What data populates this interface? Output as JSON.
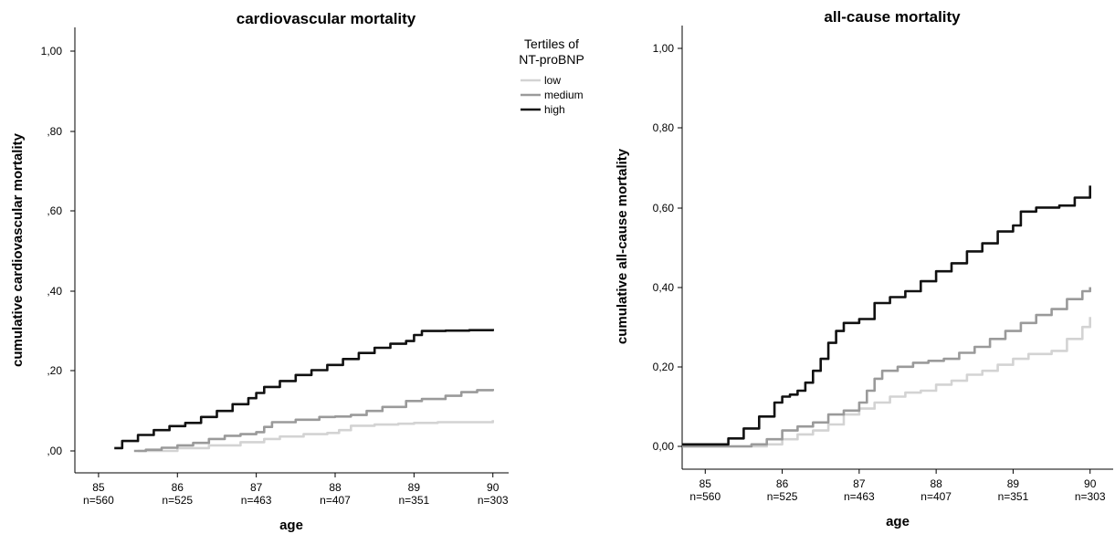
{
  "chart_data": [
    {
      "type": "line",
      "title": "cardiovascular mortality",
      "xlabel": "age",
      "ylabel": "cumulative cardiovascular mortality",
      "xlim": [
        84.7,
        90.2
      ],
      "ylim": [
        -0.06,
        1.05
      ],
      "x_ticks": [
        85,
        86,
        87,
        88,
        89,
        90
      ],
      "x_tick_sublabels": [
        "n=560",
        "n=525",
        "n=463",
        "n=407",
        "n=351",
        "n=303"
      ],
      "y_ticks": [
        "0",
        "0.2",
        "0.4",
        "0.6",
        "0.8",
        "1"
      ],
      "y_tick_labels": [
        ",00",
        ",20",
        ",40",
        ",60",
        ",80",
        "1,00"
      ],
      "grid": false,
      "legend": {
        "title_lines": [
          "Tertiles of",
          "NT-proBNP"
        ],
        "placement": "top-right"
      },
      "series": [
        {
          "name": "low",
          "color": "#d3d3d3",
          "x": [
            85.5,
            86.0,
            86.4,
            86.8,
            87.1,
            87.3,
            87.6,
            87.9,
            88.05,
            88.2,
            88.5,
            88.8,
            89.0,
            89.3,
            89.7,
            90.0
          ],
          "y": [
            0.0,
            0.007,
            0.014,
            0.022,
            0.03,
            0.036,
            0.042,
            0.045,
            0.052,
            0.063,
            0.066,
            0.068,
            0.07,
            0.072,
            0.072,
            0.077
          ]
        },
        {
          "name": "medium",
          "color": "#9a9a9a",
          "x": [
            85.45,
            85.6,
            85.8,
            86.0,
            86.2,
            86.4,
            86.6,
            86.8,
            87.0,
            87.1,
            87.2,
            87.5,
            87.8,
            88.0,
            88.2,
            88.4,
            88.6,
            88.9,
            89.1,
            89.4,
            89.6,
            89.8,
            90.0
          ],
          "y": [
            0.0,
            0.003,
            0.008,
            0.014,
            0.02,
            0.03,
            0.038,
            0.042,
            0.047,
            0.06,
            0.072,
            0.078,
            0.085,
            0.086,
            0.09,
            0.1,
            0.11,
            0.125,
            0.13,
            0.138,
            0.147,
            0.152,
            0.155
          ]
        },
        {
          "name": "high",
          "color": "#111111",
          "x": [
            85.2,
            85.3,
            85.5,
            85.7,
            85.9,
            86.1,
            86.3,
            86.5,
            86.7,
            86.9,
            87.0,
            87.1,
            87.3,
            87.5,
            87.7,
            87.9,
            88.1,
            88.3,
            88.5,
            88.7,
            88.9,
            89.0,
            89.1,
            89.4,
            89.7,
            90.0
          ],
          "y": [
            0.007,
            0.025,
            0.04,
            0.052,
            0.062,
            0.07,
            0.085,
            0.1,
            0.117,
            0.132,
            0.145,
            0.16,
            0.175,
            0.19,
            0.202,
            0.215,
            0.23,
            0.245,
            0.258,
            0.268,
            0.275,
            0.29,
            0.3,
            0.301,
            0.302,
            0.305
          ]
        }
      ]
    },
    {
      "type": "line",
      "title": "all-cause mortality",
      "xlabel": "age",
      "ylabel": "cumulative all-cause mortality",
      "xlim": [
        84.7,
        90.3
      ],
      "ylim": [
        -0.06,
        1.05
      ],
      "x_ticks": [
        85,
        86,
        87,
        88,
        89,
        90
      ],
      "x_tick_sublabels": [
        "n=560",
        "n=525",
        "n=463",
        "n=407",
        "n=351",
        "n=303"
      ],
      "y_ticks": [
        "0",
        "0.2",
        "0.4",
        "0.6",
        "0.8",
        "1"
      ],
      "y_tick_labels": [
        "0,00",
        "0,20",
        "0,40",
        "0,60",
        "0,80",
        "1,00"
      ],
      "grid": false,
      "series": [
        {
          "name": "low",
          "color": "#d3d3d3",
          "x": [
            84.7,
            85.5,
            85.8,
            86.0,
            86.2,
            86.4,
            86.6,
            86.8,
            87.0,
            87.2,
            87.4,
            87.6,
            87.8,
            88.0,
            88.2,
            88.4,
            88.6,
            88.8,
            89.0,
            89.2,
            89.5,
            89.7,
            89.9,
            90.0
          ],
          "y": [
            0.0,
            0.0,
            0.005,
            0.018,
            0.03,
            0.04,
            0.055,
            0.08,
            0.095,
            0.11,
            0.125,
            0.135,
            0.14,
            0.155,
            0.165,
            0.18,
            0.19,
            0.205,
            0.22,
            0.232,
            0.24,
            0.27,
            0.3,
            0.325
          ]
        },
        {
          "name": "medium",
          "color": "#9a9a9a",
          "x": [
            84.7,
            85.4,
            85.6,
            85.8,
            86.0,
            86.2,
            86.4,
            86.6,
            86.8,
            87.0,
            87.1,
            87.2,
            87.3,
            87.5,
            87.7,
            87.9,
            88.1,
            88.3,
            88.5,
            88.7,
            88.9,
            89.1,
            89.3,
            89.5,
            89.7,
            89.9,
            90.0
          ],
          "y": [
            0.0,
            0.0,
            0.005,
            0.018,
            0.04,
            0.05,
            0.06,
            0.08,
            0.09,
            0.11,
            0.14,
            0.17,
            0.19,
            0.2,
            0.21,
            0.215,
            0.22,
            0.235,
            0.25,
            0.27,
            0.29,
            0.31,
            0.33,
            0.345,
            0.37,
            0.39,
            0.4
          ]
        },
        {
          "name": "high",
          "color": "#111111",
          "x": [
            84.7,
            85.2,
            85.3,
            85.5,
            85.7,
            85.9,
            86.0,
            86.1,
            86.2,
            86.3,
            86.4,
            86.5,
            86.6,
            86.7,
            86.8,
            87.0,
            87.2,
            87.4,
            87.6,
            87.8,
            88.0,
            88.2,
            88.4,
            88.6,
            88.8,
            89.0,
            89.1,
            89.3,
            89.6,
            89.8,
            90.0
          ],
          "y": [
            0.005,
            0.005,
            0.02,
            0.045,
            0.075,
            0.11,
            0.125,
            0.13,
            0.14,
            0.16,
            0.19,
            0.22,
            0.26,
            0.29,
            0.31,
            0.32,
            0.36,
            0.375,
            0.39,
            0.415,
            0.44,
            0.46,
            0.49,
            0.51,
            0.54,
            0.555,
            0.59,
            0.6,
            0.605,
            0.625,
            0.655
          ]
        }
      ]
    }
  ]
}
